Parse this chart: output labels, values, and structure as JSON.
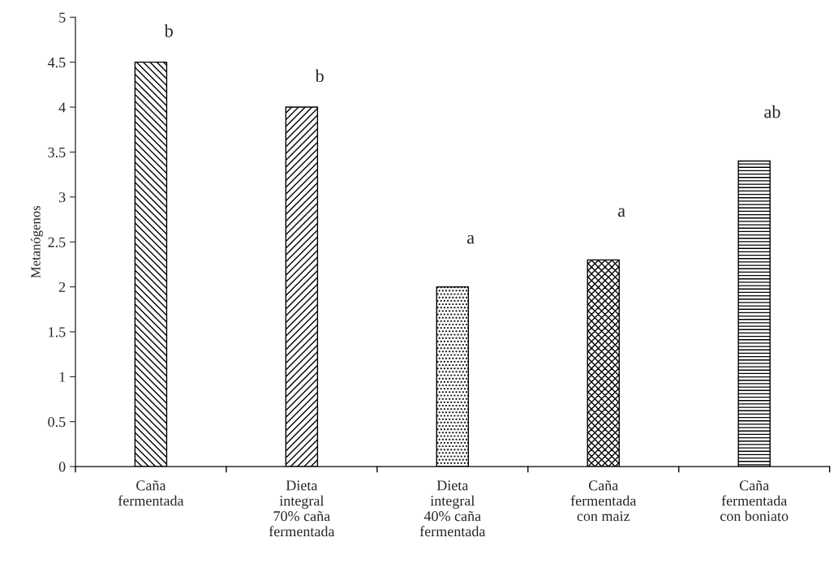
{
  "chart_data": {
    "type": "bar",
    "ylabel": "Metanógenos",
    "categories": [
      "Caña\nfermentada",
      "Dieta\nintegral\n70% caña\nfermentada",
      "Dieta\nintegral\n40% caña\nfermentada",
      "Caña\nfermentada\ncon maiz",
      "Caña\nfermentada\ncon boniato"
    ],
    "values": [
      4.5,
      4.0,
      2.0,
      2.3,
      3.4
    ],
    "colors": [
      "#000000",
      "#000000",
      "#000000",
      "#000000",
      "#000000"
    ],
    "ylim": [
      0,
      5
    ],
    "yticks": [
      0,
      0.5,
      1,
      1.5,
      2,
      2.5,
      3,
      3.5,
      4,
      4.5,
      5
    ],
    "grid": false,
    "legend": false,
    "annotations": [
      "b",
      "b",
      "a",
      "a",
      "ab"
    ]
  }
}
